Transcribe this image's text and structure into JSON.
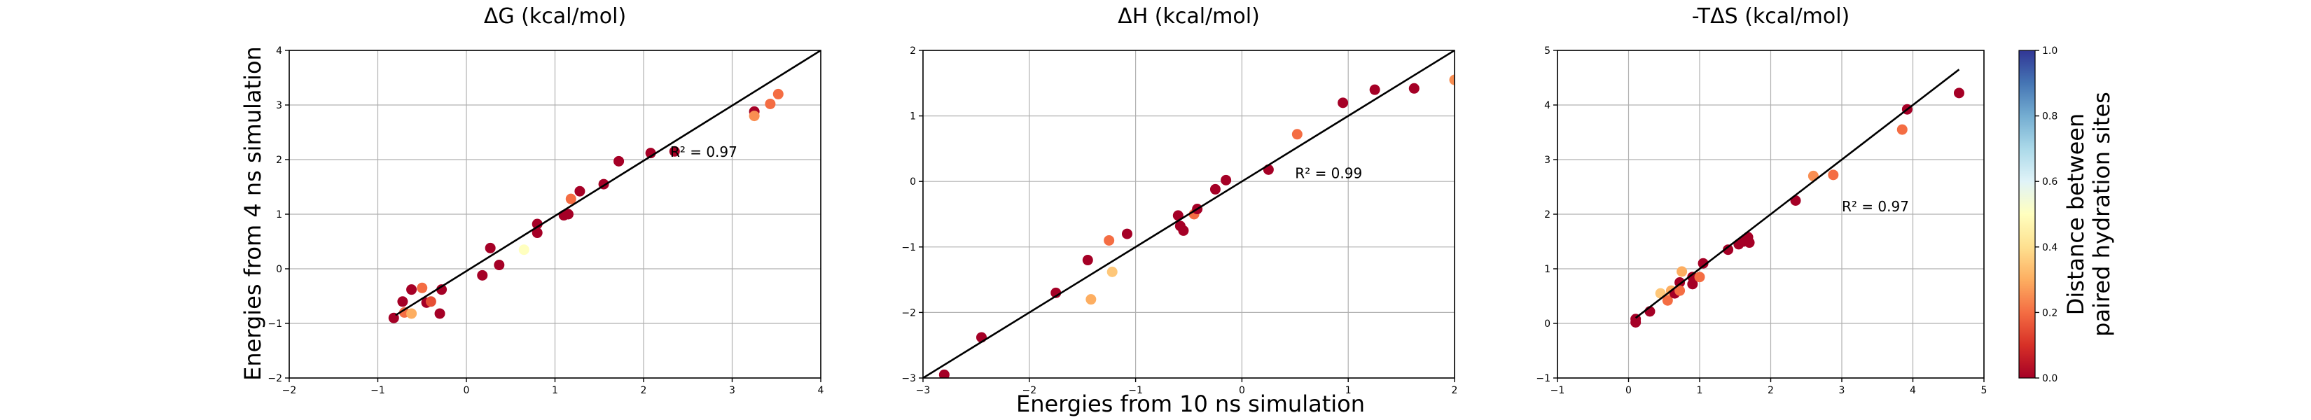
{
  "figure": {
    "ylabel": "Energies from 4 ns simulation",
    "xlabel": "Energies from 10 ns simulation",
    "colorbar": {
      "label_lines": [
        "Distance between",
        "paired hydration sites"
      ],
      "ticks": [
        "0.0",
        "0.2",
        "0.4",
        "0.6",
        "0.8",
        "1.0"
      ],
      "range": [
        0.0,
        1.0
      ],
      "colormap": "RdYlBu",
      "stops": [
        "#a50026",
        "#d73027",
        "#f46d43",
        "#fdae61",
        "#fee090",
        "#ffffbf",
        "#e0f3f8",
        "#abd9e9",
        "#74add1",
        "#4575b4",
        "#313695"
      ]
    }
  },
  "chart_data": [
    {
      "type": "scatter",
      "title": "ΔG (kcal/mol)",
      "xlim": [
        -2,
        4
      ],
      "ylim": [
        -2,
        4
      ],
      "xticks": [
        -2,
        -1,
        0,
        1,
        2,
        3,
        4
      ],
      "yticks": [
        -2,
        -1,
        0,
        1,
        2,
        3,
        4
      ],
      "grid": true,
      "fit_line": {
        "x": [
          -0.8,
          4.0
        ],
        "y": [
          -0.85,
          4.0
        ]
      },
      "annotation": {
        "text": "R² = 0.97",
        "x": 2.3,
        "y": 2.05
      },
      "points": [
        {
          "x": -0.82,
          "y": -0.9,
          "c": 0.0
        },
        {
          "x": -0.72,
          "y": -0.6,
          "c": 0.0
        },
        {
          "x": -0.62,
          "y": -0.38,
          "c": 0.0
        },
        {
          "x": -0.7,
          "y": -0.8,
          "c": 0.2
        },
        {
          "x": -0.62,
          "y": -0.82,
          "c": 0.3
        },
        {
          "x": -0.5,
          "y": -0.35,
          "c": 0.2
        },
        {
          "x": -0.45,
          "y": -0.62,
          "c": 0.0
        },
        {
          "x": -0.4,
          "y": -0.6,
          "c": 0.15
        },
        {
          "x": -0.3,
          "y": -0.82,
          "c": 0.0
        },
        {
          "x": -0.28,
          "y": -0.38,
          "c": 0.0
        },
        {
          "x": 0.18,
          "y": -0.12,
          "c": 0.0
        },
        {
          "x": 0.27,
          "y": 0.38,
          "c": 0.0
        },
        {
          "x": 0.37,
          "y": 0.07,
          "c": 0.0
        },
        {
          "x": 0.65,
          "y": 0.35,
          "c": 0.5
        },
        {
          "x": 0.8,
          "y": 0.82,
          "c": 0.0
        },
        {
          "x": 0.8,
          "y": 0.66,
          "c": 0.0
        },
        {
          "x": 1.1,
          "y": 0.98,
          "c": 0.0
        },
        {
          "x": 1.15,
          "y": 1.0,
          "c": 0.0
        },
        {
          "x": 1.18,
          "y": 1.28,
          "c": 0.2
        },
        {
          "x": 1.28,
          "y": 1.42,
          "c": 0.0
        },
        {
          "x": 1.55,
          "y": 1.55,
          "c": 0.0
        },
        {
          "x": 1.72,
          "y": 1.97,
          "c": 0.0
        },
        {
          "x": 2.08,
          "y": 2.12,
          "c": 0.0
        },
        {
          "x": 2.35,
          "y": 2.15,
          "c": 0.0
        },
        {
          "x": 3.25,
          "y": 2.88,
          "c": 0.0
        },
        {
          "x": 3.25,
          "y": 2.8,
          "c": 0.25
        },
        {
          "x": 3.43,
          "y": 3.02,
          "c": 0.2
        },
        {
          "x": 3.52,
          "y": 3.2,
          "c": 0.2
        }
      ]
    },
    {
      "type": "scatter",
      "title": "ΔH (kcal/mol)",
      "xlim": [
        -3,
        2
      ],
      "ylim": [
        -3,
        2
      ],
      "xticks": [
        -3,
        -2,
        -1,
        0,
        1,
        2
      ],
      "yticks": [
        -3,
        -2,
        -1,
        0,
        1,
        2
      ],
      "grid": true,
      "fit_line": {
        "x": [
          -3.0,
          2.0
        ],
        "y": [
          -3.0,
          2.0
        ]
      },
      "annotation": {
        "text": "R² = 0.99",
        "x": 0.5,
        "y": 0.05
      },
      "points": [
        {
          "x": -2.8,
          "y": -2.95,
          "c": 0.0
        },
        {
          "x": -2.45,
          "y": -2.38,
          "c": 0.0
        },
        {
          "x": -1.75,
          "y": -1.7,
          "c": 0.0
        },
        {
          "x": -1.42,
          "y": -1.8,
          "c": 0.3
        },
        {
          "x": -1.45,
          "y": -1.2,
          "c": 0.0
        },
        {
          "x": -1.25,
          "y": -0.9,
          "c": 0.2
        },
        {
          "x": -1.22,
          "y": -1.38,
          "c": 0.35
        },
        {
          "x": -1.08,
          "y": -0.8,
          "c": 0.0
        },
        {
          "x": -0.6,
          "y": -0.52,
          "c": 0.0
        },
        {
          "x": -0.58,
          "y": -0.68,
          "c": 0.0
        },
        {
          "x": -0.55,
          "y": -0.75,
          "c": 0.0
        },
        {
          "x": -0.45,
          "y": -0.5,
          "c": 0.2
        },
        {
          "x": -0.42,
          "y": -0.42,
          "c": 0.0
        },
        {
          "x": -0.25,
          "y": -0.12,
          "c": 0.0
        },
        {
          "x": -0.15,
          "y": 0.02,
          "c": 0.0
        },
        {
          "x": 0.25,
          "y": 0.18,
          "c": 0.0
        },
        {
          "x": 0.52,
          "y": 0.72,
          "c": 0.2
        },
        {
          "x": 0.95,
          "y": 1.2,
          "c": 0.0
        },
        {
          "x": 1.25,
          "y": 1.4,
          "c": 0.0
        },
        {
          "x": 1.62,
          "y": 1.42,
          "c": 0.0
        },
        {
          "x": 2.0,
          "y": 1.55,
          "c": 0.25
        }
      ]
    },
    {
      "type": "scatter",
      "title": "-TΔS (kcal/mol)",
      "xlim": [
        -1,
        5
      ],
      "ylim": [
        -1,
        5
      ],
      "xticks": [
        -1,
        0,
        1,
        2,
        3,
        4,
        5
      ],
      "yticks": [
        -1,
        0,
        1,
        2,
        3,
        4,
        5
      ],
      "grid": true,
      "fit_line": {
        "x": [
          0.1,
          4.65
        ],
        "y": [
          0.1,
          4.65
        ]
      },
      "annotation": {
        "text": "R² = 0.97",
        "x": 3.0,
        "y": 2.05
      },
      "points": [
        {
          "x": 0.1,
          "y": 0.02,
          "c": 0.0
        },
        {
          "x": 0.1,
          "y": 0.08,
          "c": 0.0
        },
        {
          "x": 0.3,
          "y": 0.22,
          "c": 0.0
        },
        {
          "x": 0.45,
          "y": 0.55,
          "c": 0.35
        },
        {
          "x": 0.55,
          "y": 0.42,
          "c": 0.2
        },
        {
          "x": 0.6,
          "y": 0.6,
          "c": 0.3
        },
        {
          "x": 0.65,
          "y": 0.55,
          "c": 0.0
        },
        {
          "x": 0.72,
          "y": 0.75,
          "c": 0.0
        },
        {
          "x": 0.72,
          "y": 0.6,
          "c": 0.2
        },
        {
          "x": 0.75,
          "y": 0.95,
          "c": 0.3
        },
        {
          "x": 0.9,
          "y": 0.85,
          "c": 0.0
        },
        {
          "x": 0.9,
          "y": 0.72,
          "c": 0.0
        },
        {
          "x": 1.0,
          "y": 0.85,
          "c": 0.2
        },
        {
          "x": 1.05,
          "y": 1.1,
          "c": 0.0
        },
        {
          "x": 1.4,
          "y": 1.35,
          "c": 0.0
        },
        {
          "x": 1.55,
          "y": 1.45,
          "c": 0.0
        },
        {
          "x": 1.62,
          "y": 1.5,
          "c": 0.0
        },
        {
          "x": 1.68,
          "y": 1.58,
          "c": 0.0
        },
        {
          "x": 1.7,
          "y": 1.48,
          "c": 0.0
        },
        {
          "x": 2.35,
          "y": 2.25,
          "c": 0.0
        },
        {
          "x": 2.6,
          "y": 2.7,
          "c": 0.25
        },
        {
          "x": 2.88,
          "y": 2.72,
          "c": 0.2
        },
        {
          "x": 3.85,
          "y": 3.55,
          "c": 0.2
        },
        {
          "x": 3.92,
          "y": 3.92,
          "c": 0.0
        },
        {
          "x": 4.65,
          "y": 4.22,
          "c": 0.0
        }
      ]
    }
  ]
}
